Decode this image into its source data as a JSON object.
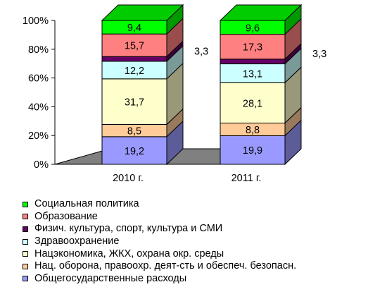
{
  "chart_data": {
    "type": "bar",
    "stacked": true,
    "percent_stacked": true,
    "three_d": true,
    "categories": [
      "2010 г.",
      "2011 г."
    ],
    "series": [
      {
        "name": "Общегосударственные расходы",
        "values": [
          19.2,
          19.9
        ],
        "color": "#9999ff",
        "label_color": "#000000"
      },
      {
        "name": "Нац. оборона, правоохр. деят-сть и обеспеч. безопасн.",
        "values": [
          8.5,
          8.8
        ],
        "color": "#ffcc99",
        "label_color": "#000000"
      },
      {
        "name": "Нацэкономика, ЖКХ, охрана окр. среды",
        "values": [
          31.7,
          28.1
        ],
        "color": "#ffffcc",
        "label_color": "#000000"
      },
      {
        "name": "Здравоохранение",
        "values": [
          12.2,
          13.1
        ],
        "color": "#ccffff",
        "label_color": "#000000"
      },
      {
        "name": "Физич. культура, спорт, культура и СМИ",
        "values": [
          3.3,
          3.3
        ],
        "color": "#660066",
        "label_color": "#000000"
      },
      {
        "name": "Образование",
        "values": [
          15.7,
          17.3
        ],
        "color": "#ff8080",
        "label_color": "#000000"
      },
      {
        "name": "Социальная политика",
        "values": [
          9.4,
          9.6
        ],
        "color": "#00ff00",
        "label_color": "#000000"
      }
    ],
    "data_labels": {
      "2010 г.": [
        "19,2",
        "8,5",
        "31,7",
        "12,2",
        "3,3",
        "15,7",
        "9,4"
      ],
      "2011 г.": [
        "19,9",
        "8,8",
        "28,1",
        "13,1",
        "3,3",
        "17,3",
        "9,6"
      ]
    },
    "y_ticks": [
      "0%",
      "20%",
      "40%",
      "60%",
      "80%",
      "100%"
    ],
    "ylim": [
      0,
      100
    ],
    "grid": false,
    "floor_color": "#808080",
    "legend_position": "bottom"
  }
}
